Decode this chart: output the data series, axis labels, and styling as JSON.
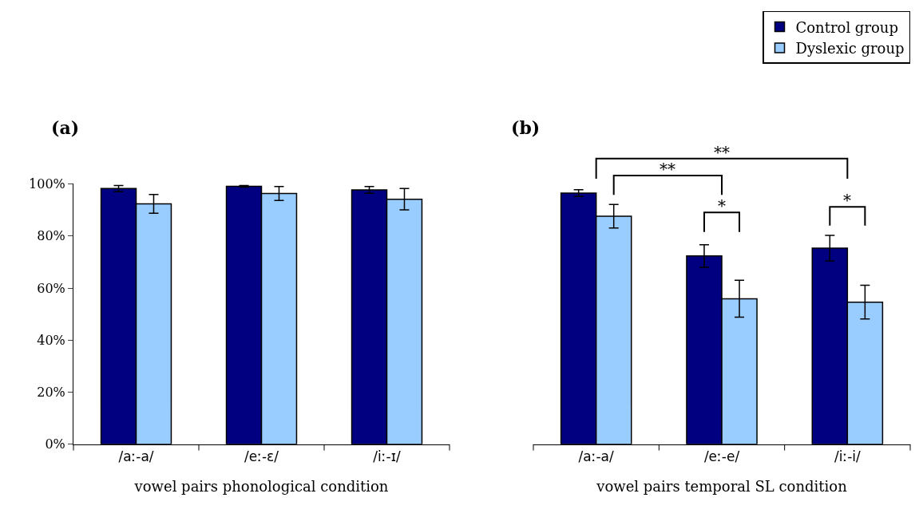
{
  "chart_data": [
    {
      "type": "bar",
      "title": "(a)",
      "xlabel": "vowel pairs phonological condition",
      "categories": [
        "/aː-a/",
        "/eː-ɛ/",
        "/iː-ɪ/"
      ],
      "series": [
        {
          "color": "#000080",
          "values": [
            98.2,
            99.1,
            97.7
          ],
          "errors": [
            1.2,
            0.3,
            1.3
          ]
        },
        {
          "color": "#99ccff",
          "values": [
            92.3,
            96.3,
            94.1
          ],
          "errors": [
            3.6,
            2.7,
            4.1
          ]
        }
      ],
      "ylim": [
        0,
        100
      ],
      "yticks": [
        {
          "value": 0,
          "label": "0%"
        },
        {
          "value": 20,
          "label": "20%"
        },
        {
          "value": 40,
          "label": "40%"
        },
        {
          "value": 60,
          "label": "60%"
        },
        {
          "value": 80,
          "label": "80%"
        },
        {
          "value": 100,
          "label": "100%"
        }
      ],
      "tick_labels": true
    },
    {
      "type": "bar",
      "title": "(b)",
      "xlabel": "vowel pairs temporal SL condition",
      "categories": [
        "/aː-a/",
        "/eː-e/",
        "/iː-i/"
      ],
      "series": [
        {
          "name": "Control group",
          "color": "#000080",
          "values": [
            96.5,
            72.3,
            75.3
          ],
          "errors": [
            1.3,
            4.3,
            4.9
          ]
        },
        {
          "name": "Dyslexic group",
          "color": "#99ccff",
          "values": [
            87.6,
            55.9,
            54.6
          ],
          "errors": [
            4.5,
            7.1,
            6.5
          ]
        }
      ],
      "ylim": [
        0,
        100
      ],
      "tick_labels": "x",
      "legend": "top right",
      "annotations": [
        "**",
        "**",
        "*",
        "*"
      ]
    }
  ]
}
